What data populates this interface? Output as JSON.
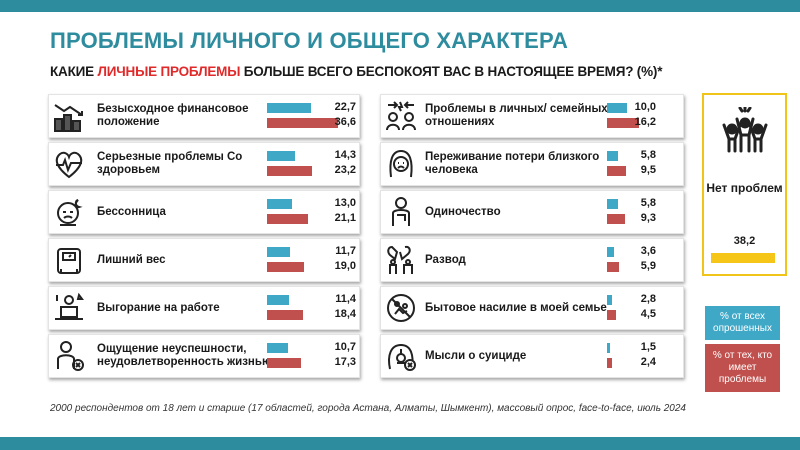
{
  "title": "ПРОБЛЕМЫ ЛИЧНОГО И ОБЩЕГО ХАРАКТЕРА",
  "subtitle": {
    "part1": "КАКИЕ ",
    "highlight": "ЛИЧНЫЕ ПРОБЛЕМЫ",
    "part2": " БОЛЬШЕ ВСЕГО БЕСПОКОЯТ ВАС В НАСТОЯЩЕЕ ВРЕМЯ? (%)*"
  },
  "colors": {
    "accent": "#2e8c9f",
    "blue": "#3fa8c7",
    "red": "#c0504d",
    "yellow": "#f5c518",
    "highlight": "#e02a2a"
  },
  "legend": {
    "blue": "% от всех опрошенных",
    "red": "% от тех, кто имеет проблемы"
  },
  "footnote": "2000 респондентов от 18 лет и старше (17 областей, города Астана, Алматы, Шымкент), массовый опрос, face-to-face, июль 2024",
  "chart_data": {
    "type": "bar",
    "scale_max": 40,
    "series_names": [
      "% от всех опрошенных",
      "% от тех, кто имеет проблемы"
    ],
    "items": [
      {
        "label": "Безысходное финансовое положение",
        "all": 22.7,
        "with_problems": 36.6,
        "all_text": "22,7",
        "with_text": "36,6",
        "icon": "money-stack-icon"
      },
      {
        "label": "Серьезные проблемы Со здоровьем",
        "all": 14.3,
        "with_problems": 23.2,
        "all_text": "14,3",
        "with_text": "23,2",
        "icon": "heart-pulse-icon"
      },
      {
        "label": "Бессонница",
        "all": 13.0,
        "with_problems": 21.1,
        "all_text": "13,0",
        "with_text": "21,1",
        "icon": "sleepless-face-icon"
      },
      {
        "label": "Лишний вес",
        "all": 11.7,
        "with_problems": 19.0,
        "all_text": "11,7",
        "with_text": "19,0",
        "icon": "scale-icon"
      },
      {
        "label": "Выгорание на работе",
        "all": 11.4,
        "with_problems": 18.4,
        "all_text": "11,4",
        "with_text": "18,4",
        "icon": "burnout-desk-icon"
      },
      {
        "label": "Ощущение неуспешности, неудовлетворенность жизнью",
        "all": 10.7,
        "with_problems": 17.3,
        "all_text": "10,7",
        "with_text": "17,3",
        "icon": "sad-person-icon"
      },
      {
        "label": "Проблемы в личных/ семейных отношениях",
        "all": 10.0,
        "with_problems": 16.2,
        "all_text": "10,0",
        "with_text": "16,2",
        "icon": "arguing-couple-icon"
      },
      {
        "label": "Переживание потери близкого человека",
        "all": 5.8,
        "with_problems": 9.5,
        "all_text": "5,8",
        "with_text": "9,5",
        "icon": "grieving-face-icon"
      },
      {
        "label": "Одиночество",
        "all": 5.8,
        "with_problems": 9.3,
        "all_text": "5,8",
        "with_text": "9,3",
        "icon": "lonely-person-icon"
      },
      {
        "label": "Развод",
        "all": 3.6,
        "with_problems": 5.9,
        "all_text": "3,6",
        "with_text": "5,9",
        "icon": "broken-heart-icon"
      },
      {
        "label": "Бытовое насилие в моей семье",
        "all": 2.8,
        "with_problems": 4.5,
        "all_text": "2,8",
        "with_text": "4,5",
        "icon": "no-violence-icon"
      },
      {
        "label": "Мысли о суициде",
        "all": 1.5,
        "with_problems": 2.4,
        "all_text": "1,5",
        "with_text": "2,4",
        "icon": "suicide-thoughts-icon"
      }
    ],
    "no_problems": {
      "label": "Нет проблем",
      "value": 38.2,
      "value_text": "38,2",
      "icon": "happy-people-icon"
    }
  }
}
